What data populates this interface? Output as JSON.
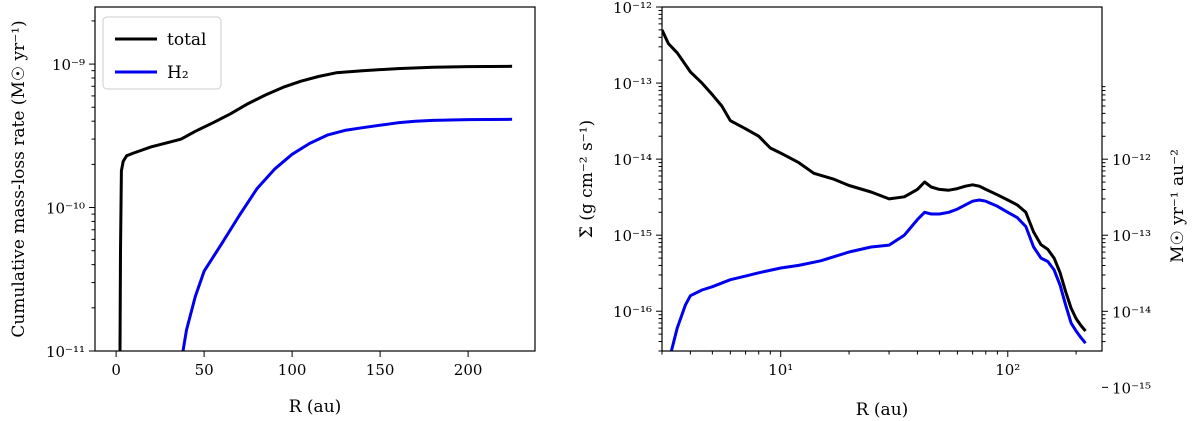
{
  "chart_data": [
    {
      "type": "line",
      "xlabel": "R (au)",
      "ylabel": "Cumulative mass-loss rate (M☉ yr⁻¹)",
      "xscale": "linear",
      "yscale": "log",
      "xlim": [
        -12,
        238
      ],
      "ylim": [
        1e-11,
        2.5e-09
      ],
      "xticks": [
        0,
        50,
        100,
        150,
        200
      ],
      "xtick_labels": [
        "0",
        "50",
        "100",
        "150",
        "200"
      ],
      "yticks": [
        1e-11,
        1e-10,
        1e-09
      ],
      "ytick_labels": [
        "10⁻¹¹",
        "10⁻¹⁰",
        "10⁻⁹"
      ],
      "legend_position": "top-left",
      "series": [
        {
          "name": "total",
          "color": "#000000",
          "x": [
            2.2,
            2.5,
            3,
            4,
            6,
            10,
            20,
            30,
            37,
            45,
            55,
            65,
            75,
            85,
            95,
            105,
            115,
            125,
            140,
            160,
            180,
            200,
            225
          ],
          "y": [
            1e-11,
            5e-11,
            1.8e-10,
            2.1e-10,
            2.3e-10,
            2.4e-10,
            2.65e-10,
            2.85e-10,
            3e-10,
            3.4e-10,
            3.9e-10,
            4.5e-10,
            5.3e-10,
            6.1e-10,
            6.9e-10,
            7.6e-10,
            8.2e-10,
            8.7e-10,
            9e-10,
            9.3e-10,
            9.5e-10,
            9.6e-10,
            9.65e-10
          ]
        },
        {
          "name": "H₂",
          "color": "#0000ee",
          "x": [
            38,
            40,
            45,
            50,
            60,
            70,
            80,
            90,
            100,
            110,
            120,
            130,
            140,
            150,
            160,
            170,
            180,
            200,
            225
          ],
          "y": [
            1e-11,
            1.4e-11,
            2.4e-11,
            3.6e-11,
            5.6e-11,
            8.8e-11,
            1.35e-10,
            1.85e-10,
            2.35e-10,
            2.8e-10,
            3.2e-10,
            3.45e-10,
            3.6e-10,
            3.75e-10,
            3.9e-10,
            4e-10,
            4.05e-10,
            4.1e-10,
            4.12e-10
          ]
        }
      ]
    },
    {
      "type": "line",
      "xlabel": "R (au)",
      "ylabel": "Σ̇ (g cm⁻² s⁻¹)",
      "ylabel_right": "M☉ yr⁻¹ au⁻²",
      "xscale": "log",
      "yscale": "log",
      "xlim": [
        3,
        260
      ],
      "ylim": [
        3e-17,
        1e-12
      ],
      "xticks": [
        10,
        100
      ],
      "xtick_labels": [
        "10¹",
        "10²"
      ],
      "yticks": [
        1e-16,
        1e-15,
        1e-14,
        1e-13,
        1e-12
      ],
      "ytick_labels": [
        "10⁻¹⁶",
        "10⁻¹⁵",
        "10⁻¹⁴",
        "10⁻¹³",
        "10⁻¹²"
      ],
      "yticks_right_labels": [
        "10⁻¹⁵",
        "10⁻¹⁴",
        "10⁻¹³",
        "10⁻¹²"
      ],
      "series": [
        {
          "name": "total",
          "color": "#000000",
          "x": [
            3,
            3.2,
            3.5,
            4,
            4.5,
            5,
            5.5,
            6,
            7,
            8,
            9,
            10,
            12,
            14,
            17,
            20,
            25,
            30,
            35,
            40,
            43,
            46,
            50,
            55,
            60,
            65,
            70,
            75,
            80,
            90,
            100,
            110,
            120,
            130,
            140,
            150,
            160,
            170,
            180,
            190,
            200,
            210,
            220
          ],
          "y": [
            5e-13,
            3.3e-13,
            2.5e-13,
            1.4e-13,
            1e-13,
            7e-14,
            5e-14,
            3.2e-14,
            2.5e-14,
            2e-14,
            1.4e-14,
            1.2e-14,
            9e-15,
            6.5e-15,
            5.5e-15,
            4.5e-15,
            3.7e-15,
            3e-15,
            3.2e-15,
            4e-15,
            5e-15,
            4.3e-15,
            4e-15,
            3.9e-15,
            4.1e-15,
            4.4e-15,
            4.6e-15,
            4.4e-15,
            4e-15,
            3.4e-15,
            2.9e-15,
            2.5e-15,
            2e-15,
            1.1e-15,
            7.5e-16,
            6.5e-16,
            5e-16,
            3.2e-16,
            1.8e-16,
            1.1e-16,
            8e-17,
            6.5e-17,
            5.5e-17
          ]
        },
        {
          "name": "H₂",
          "color": "#0000ee",
          "x": [
            3.3,
            3.5,
            3.8,
            4,
            4.5,
            5,
            6,
            7,
            8,
            10,
            12,
            15,
            20,
            25,
            30,
            35,
            40,
            43,
            46,
            50,
            55,
            60,
            65,
            70,
            75,
            80,
            90,
            100,
            110,
            120,
            130,
            140,
            150,
            160,
            170,
            180,
            190,
            200,
            210,
            220
          ],
          "y": [
            3e-17,
            6e-17,
            1.2e-16,
            1.6e-16,
            1.9e-16,
            2.1e-16,
            2.6e-16,
            2.9e-16,
            3.2e-16,
            3.7e-16,
            4e-16,
            4.6e-16,
            6e-16,
            7e-16,
            7.4e-16,
            1e-15,
            1.6e-15,
            2e-15,
            1.9e-15,
            1.9e-15,
            2e-15,
            2.2e-15,
            2.5e-15,
            2.8e-15,
            2.9e-15,
            2.8e-15,
            2.4e-15,
            2e-15,
            1.7e-15,
            1.3e-15,
            7e-16,
            5e-16,
            4.5e-16,
            3.5e-16,
            2.2e-16,
            1.2e-16,
            7e-17,
            5.5e-17,
            4.5e-17,
            3.8e-17
          ]
        }
      ]
    }
  ]
}
